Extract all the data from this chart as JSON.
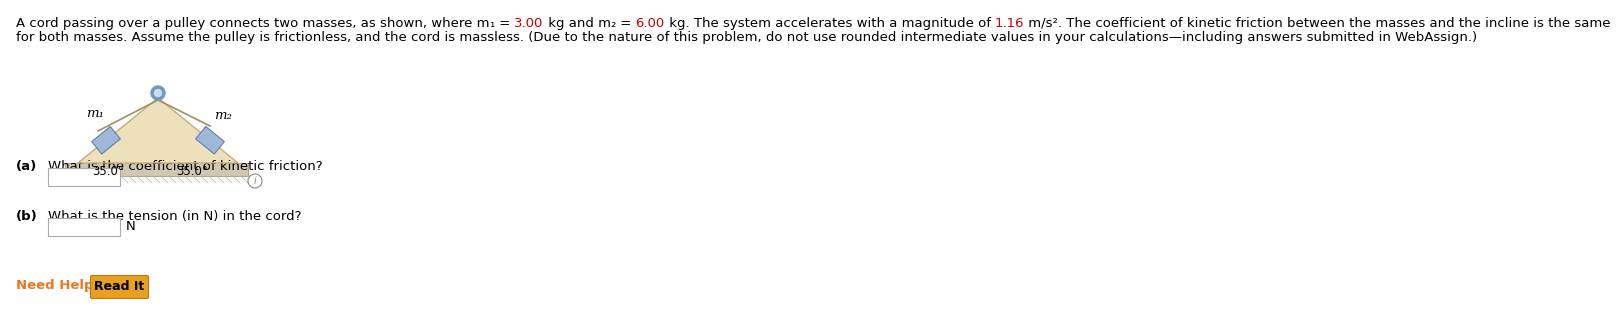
{
  "bg_color": "#ffffff",
  "highlight_color": "#cc0000",
  "orange_color": "#e87722",
  "triangle_fill": "#ede0bc",
  "triangle_edge": "#c8b080",
  "mass_fill": "#a0b8d8",
  "mass_edge": "#6080a8",
  "ground_fill": "#d0c8b0",
  "ground_edge": "#b0a890",
  "pulley_outer": "#7099bb",
  "pulley_inner": "#c8ddf0",
  "rope_color": "#a09060",
  "info_color": "#888888",
  "text_main": "#000000",
  "line1_segs": [
    [
      "A cord passing over a pulley connects two masses, as shown, where m",
      "#000000"
    ],
    [
      "₁",
      "#000000"
    ],
    [
      " = ",
      "#000000"
    ],
    [
      "3.00",
      "#cc0000"
    ],
    [
      " kg and m",
      "#000000"
    ],
    [
      "₂",
      "#000000"
    ],
    [
      " = ",
      "#000000"
    ],
    [
      "6.00",
      "#cc0000"
    ],
    [
      " kg. The system accelerates with a magnitude of ",
      "#000000"
    ],
    [
      "1.16",
      "#cc0000"
    ],
    [
      " m/s². The coefficient of kinetic friction between the masses and the incline is the same",
      "#000000"
    ]
  ],
  "line2": "for both masses. Assume the pulley is frictionless, and the cord is massless. (Due to the nature of this problem, do not use rounded intermediate values in your calculations—including answers submitted in WebAssign.)",
  "qa_label": "(a)",
  "qa_text": "What is the coefficient of kinetic friction?",
  "qb_label": "(b)",
  "qb_text": "What is the tension (in N) in the cord?",
  "qb_unit": "N",
  "need_help": "Need Help?",
  "read_it": "Read It",
  "angle_left": "35.0°",
  "angle_right": "35.0°",
  "m1_label": "m₁",
  "m2_label": "m₂",
  "fontsize_main": 9.5,
  "fontsize_small": 8.5
}
